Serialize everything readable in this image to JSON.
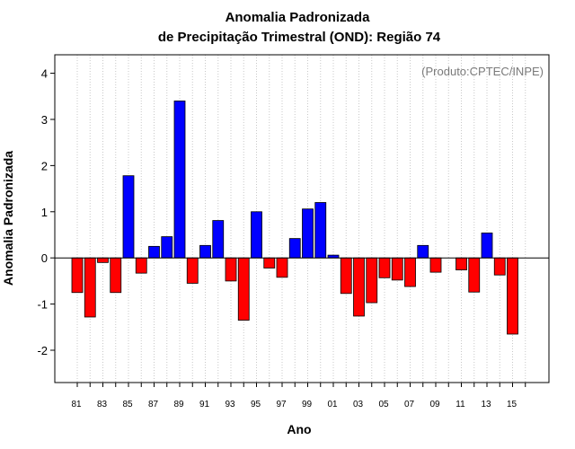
{
  "chart_data": {
    "type": "bar",
    "title_line1": "Anomalia Padronizada",
    "title_line2": "de Precipitação Trimestral (OND): Região 74",
    "xlabel": "Ano",
    "ylabel": "Anomalia Padronizada",
    "annotation": "(Produto:CPTEC/INPE)",
    "ylim": [
      -2.7,
      4.4
    ],
    "yticks": [
      -2,
      -1,
      0,
      1,
      2,
      3,
      4
    ],
    "ytick_labels": [
      "-2",
      "-1",
      "0",
      "1",
      "2",
      "3",
      "4"
    ],
    "xtick_labels": [
      "81",
      "83",
      "85",
      "87",
      "89",
      "91",
      "93",
      "95",
      "97",
      "99",
      "01",
      "03",
      "05",
      "07",
      "09",
      "11",
      "13",
      "15"
    ],
    "categories": [
      "1981",
      "1982",
      "1983",
      "1984",
      "1985",
      "1986",
      "1987",
      "1988",
      "1989",
      "1990",
      "1991",
      "1992",
      "1993",
      "1994",
      "1995",
      "1996",
      "1997",
      "1998",
      "1999",
      "2000",
      "2001",
      "2002",
      "2003",
      "2004",
      "2005",
      "2006",
      "2007",
      "2008",
      "2009",
      "2010",
      "2011",
      "2012",
      "2013",
      "2014",
      "2015",
      "2016"
    ],
    "values": [
      -0.75,
      -1.28,
      -0.1,
      -0.75,
      1.78,
      -0.33,
      0.25,
      0.46,
      3.4,
      -0.55,
      0.27,
      0.81,
      -0.5,
      -1.35,
      1.0,
      -0.22,
      -0.42,
      0.42,
      1.06,
      1.2,
      0.06,
      -0.77,
      -1.26,
      -0.97,
      -0.43,
      -0.48,
      -0.62,
      0.27,
      -0.31,
      0,
      -0.26,
      -0.74,
      0.54,
      -0.37,
      -1.65,
      0
    ],
    "colors": {
      "positive": "#0000ff",
      "negative": "#ff0000",
      "grid": "#c8c8c8",
      "zero_line": "#000000"
    },
    "grid": true
  }
}
